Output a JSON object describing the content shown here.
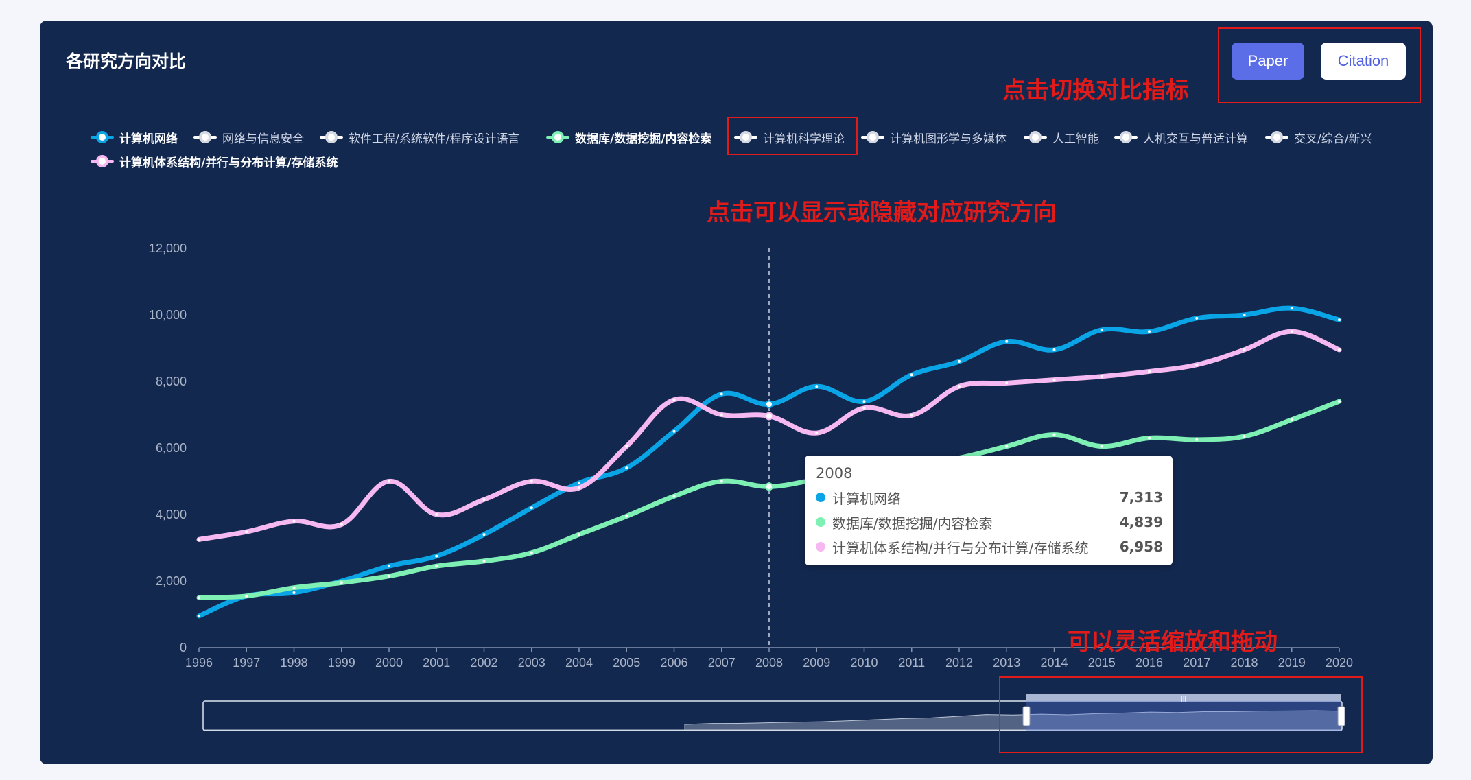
{
  "title": "各研究方向对比",
  "buttons": {
    "paper": "Paper",
    "citation": "Citation"
  },
  "annotations": {
    "switch": "点击切换对比指标",
    "toggle": "点击可以显示或隐藏对应研究方向",
    "zoom": "可以灵活缩放和拖动"
  },
  "legend": [
    {
      "label": "计算机网络",
      "active": true,
      "color": "#0aa5e6"
    },
    {
      "label": "网络与信息安全",
      "active": false,
      "color": "#ffffff"
    },
    {
      "label": "软件工程/系统软件/程序设计语言",
      "active": false,
      "color": "#ffffff"
    },
    {
      "label": "数据库/数据挖掘/内容检索",
      "active": true,
      "color": "#7ef0b4"
    },
    {
      "label": "计算机科学理论",
      "active": false,
      "color": "#ffffff"
    },
    {
      "label": "计算机图形学与多媒体",
      "active": false,
      "color": "#ffffff"
    },
    {
      "label": "人工智能",
      "active": false,
      "color": "#ffffff"
    },
    {
      "label": "人机交互与普适计算",
      "active": false,
      "color": "#ffffff"
    },
    {
      "label": "交叉/综合/新兴",
      "active": false,
      "color": "#ffffff"
    },
    {
      "label": "计算机体系结构/并行与分布计算/存储系统",
      "active": true,
      "color": "#f6b8f0"
    }
  ],
  "tooltip": {
    "year": "2008",
    "rows": [
      {
        "name": "计算机网络",
        "value": "7,313",
        "color": "#0aa5e6"
      },
      {
        "name": "数据库/数据挖掘/内容检索",
        "value": "4,839",
        "color": "#7ef0b4"
      },
      {
        "name": "计算机体系结构/并行与分布计算/存储系统",
        "value": "6,958",
        "color": "#f6b8f0"
      }
    ]
  },
  "chart_data": {
    "type": "line",
    "x": [
      "1996",
      "1997",
      "1998",
      "1999",
      "2000",
      "2001",
      "2002",
      "2003",
      "2004",
      "2005",
      "2006",
      "2007",
      "2008",
      "2009",
      "2010",
      "2011",
      "2012",
      "2013",
      "2014",
      "2015",
      "2016",
      "2017",
      "2018",
      "2019",
      "2020"
    ],
    "ylim": [
      0,
      12000
    ],
    "yticks": [
      0,
      2000,
      4000,
      6000,
      8000,
      10000,
      12000
    ],
    "ytick_labels": [
      "0",
      "2,000",
      "4,000",
      "6,000",
      "8,000",
      "10,000",
      "12,000"
    ],
    "highlight_x": "2008",
    "series": [
      {
        "name": "计算机网络",
        "color": "#0aa5e6",
        "values": [
          950,
          1550,
          1650,
          2000,
          2450,
          2750,
          3400,
          4200,
          4950,
          5400,
          6500,
          7620,
          7313,
          7850,
          7400,
          8200,
          8600,
          9200,
          8950,
          9550,
          9500,
          9900,
          10000,
          10200,
          9850
        ]
      },
      {
        "name": "数据库/数据挖掘/内容检索",
        "color": "#7ef0b4",
        "values": [
          1500,
          1550,
          1800,
          1950,
          2150,
          2450,
          2600,
          2850,
          3400,
          3950,
          4550,
          5000,
          4839,
          5050,
          5250,
          5500,
          5700,
          6050,
          6400,
          6050,
          6300,
          6250,
          6350,
          6850,
          7400
        ]
      },
      {
        "name": "计算机体系结构/并行与分布计算/存储系统",
        "color": "#f6b8f0",
        "values": [
          3250,
          3480,
          3800,
          3700,
          5000,
          4000,
          4450,
          5000,
          4800,
          6050,
          7450,
          7000,
          6958,
          6450,
          7200,
          6980,
          7850,
          7950,
          8050,
          8150,
          8300,
          8500,
          8950,
          9500,
          8950
        ]
      }
    ],
    "grid": false,
    "legend_position": "top"
  }
}
